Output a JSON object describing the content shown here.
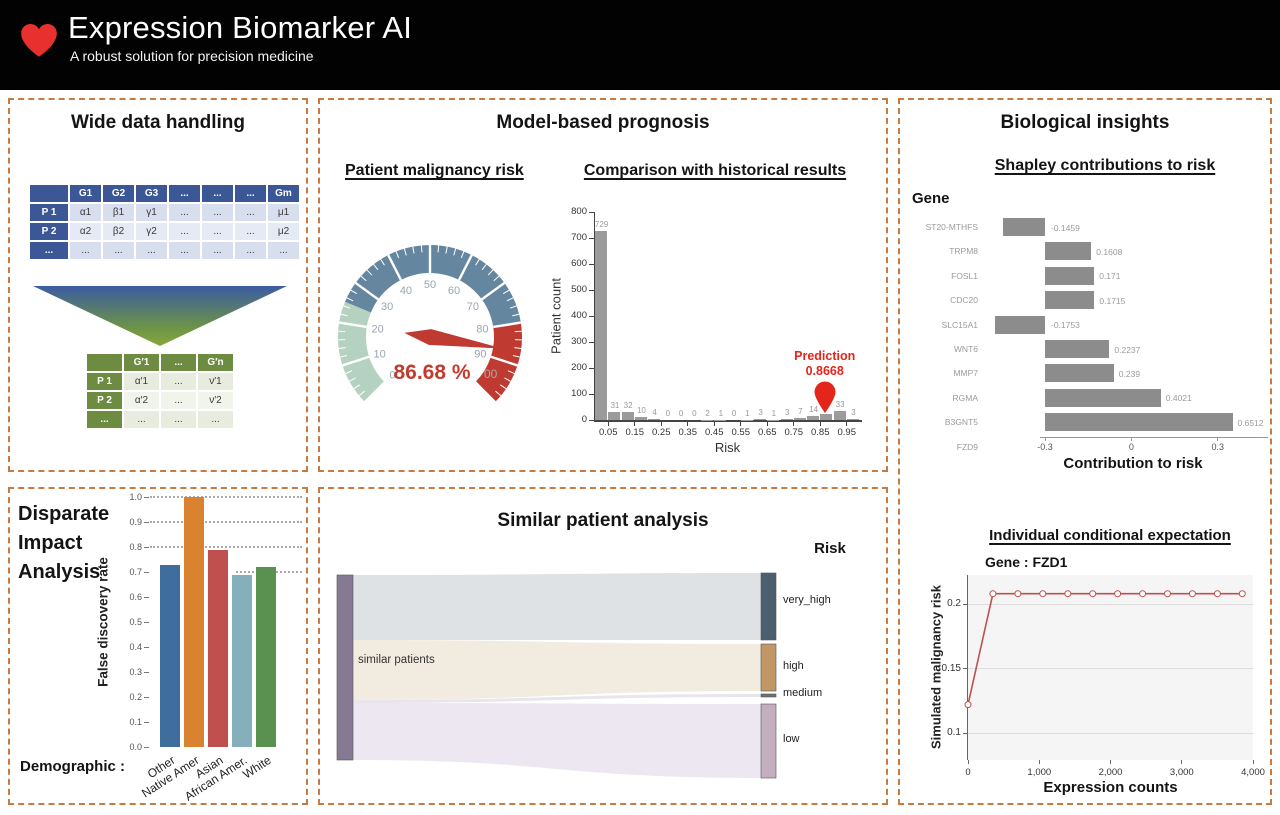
{
  "header": {
    "title": "Expression Biomarker AI",
    "subtitle": "A robust solution for precision medicine",
    "heart_color": "#e8312f"
  },
  "panels": {
    "wide_data": {
      "title": "Wide data handling",
      "input_table": {
        "header_color": "#3b5795",
        "headers": [
          "",
          "G1",
          "G2",
          "G3",
          "...",
          "...",
          "...",
          "Gm"
        ],
        "rows": [
          [
            "P 1",
            "α1",
            "β1",
            "γ1",
            "...",
            "...",
            "...",
            "μ1"
          ],
          [
            "P 2",
            "α2",
            "β2",
            "γ2",
            "...",
            "...",
            "...",
            "μ2"
          ],
          [
            "...",
            "...",
            "...",
            "...",
            "...",
            "...",
            "...",
            "..."
          ]
        ]
      },
      "funnel_colors": [
        "#3c5ca2",
        "#6d9446",
        "#86a83d"
      ],
      "output_table": {
        "header_color": "#6d8b41",
        "headers": [
          "",
          "G′1",
          "...",
          "G′n"
        ],
        "rows": [
          [
            "P 1",
            "α′1",
            "...",
            "ν′1"
          ],
          [
            "P 2",
            "α′2",
            "...",
            "ν′2"
          ],
          [
            "...",
            "...",
            "...",
            "..."
          ]
        ]
      }
    },
    "prognosis": {
      "title": "Model-based prognosis"
    },
    "insights": {
      "title": "Biological insights"
    },
    "similar": {
      "title": "Similar patient analysis"
    }
  },
  "chart_data": [
    {
      "type": "gauge",
      "title": "Patient malignancy risk",
      "min": 0,
      "max": 100,
      "value": 86.68,
      "value_label": "86.68 %",
      "overlapped_max_label": "00",
      "tick_labels": [
        0,
        10,
        20,
        30,
        40,
        50,
        60,
        70,
        80,
        90
      ],
      "bands": [
        {
          "from": 0,
          "to": 25,
          "color": "#b5d2c0"
        },
        {
          "from": 25,
          "to": 80,
          "color": "#64869f"
        },
        {
          "from": 80,
          "to": 100,
          "color": "#bf3a30"
        }
      ],
      "needle_color": "#bf3a30",
      "value_color": "#c23b2e",
      "tick_label_color": "#9aa5b1"
    },
    {
      "type": "bar",
      "title": "Comparison with historical results",
      "xlabel": "Risk",
      "ylabel": "Patient count",
      "ylim": [
        0,
        800
      ],
      "y_ticks": [
        0,
        100,
        200,
        300,
        400,
        500,
        600,
        700,
        800
      ],
      "bin_width": 0.05,
      "x_ticks": [
        0.05,
        0.15,
        0.25,
        0.35,
        0.45,
        0.55,
        0.65,
        0.75,
        0.85,
        0.95
      ],
      "values": [
        729,
        31,
        32,
        10,
        4,
        0,
        0,
        0,
        2,
        1,
        0,
        1,
        3,
        1,
        3,
        7,
        14,
        25,
        33,
        3
      ],
      "bar_labels": [
        "729",
        "31",
        "32",
        "10",
        "4",
        "0",
        "0",
        "0",
        "2",
        "1",
        "0",
        "1",
        "3",
        "1",
        "3",
        "7",
        "14",
        "",
        "33",
        "3"
      ],
      "bar_color": "#9b9b9b",
      "annotation": {
        "label": "Prediction",
        "value_label": "0.8668",
        "x": 0.8668,
        "color": "#e3251b"
      }
    },
    {
      "type": "bar-horizontal",
      "title": "Shapley contributions to risk",
      "col_header": "Gene",
      "xlabel": "Contribution to risk",
      "x_ticks": [
        -0.3,
        0,
        0.3
      ],
      "bar_color": "#8c8c8c",
      "genes": [
        "ST20-MTHFS",
        "TRPM8",
        "FOSL1",
        "CDC20",
        "SLC15A1",
        "WNT6",
        "MMP7",
        "RGMA",
        "B3GNT5",
        "FZD9"
      ],
      "values": [
        -0.1459,
        0.1608,
        0.171,
        0.1715,
        -0.1753,
        0.2237,
        0.239,
        0.4021,
        0.6512,
        null
      ],
      "value_labels": [
        "-0.1459",
        "0.1608",
        "0.171",
        "0.1715",
        "-0.1753",
        "0.2237",
        "0.239",
        "0.4021",
        "0.6512",
        ""
      ]
    },
    {
      "type": "line",
      "title": "Individual conditional expectation",
      "gene_label": "Gene :  FZD1",
      "xlabel": "Expression counts",
      "ylabel": "Simulated malignancy risk",
      "x_ticks": [
        "0",
        "1,000",
        "2,000",
        "3,000",
        "4,000"
      ],
      "x_tick_values": [
        0,
        1000,
        2000,
        3000,
        4000
      ],
      "y_ticks": [
        0.1,
        0.15,
        0.2
      ],
      "x": [
        0,
        350,
        700,
        1050,
        1400,
        1750,
        2100,
        2450,
        2800,
        3150,
        3500,
        3850
      ],
      "y": [
        0.122,
        0.208,
        0.208,
        0.208,
        0.208,
        0.208,
        0.208,
        0.208,
        0.208,
        0.208,
        0.208,
        0.208
      ],
      "line_color": "#c0504d"
    },
    {
      "type": "bar",
      "title_lines": [
        "Disparate",
        "Impact",
        "Analysis"
      ],
      "ylabel": "False discovery rate",
      "x_label_prefix": "Demographic :",
      "categories": [
        "Other",
        "Native Amer",
        "Asian",
        "African Amer.",
        "White"
      ],
      "values": [
        0.73,
        1.0,
        0.79,
        0.69,
        0.72
      ],
      "colors": [
        "#3e6d9e",
        "#d9822f",
        "#c0504d",
        "#85afba",
        "#5b9150"
      ],
      "y_ticks": [
        0.0,
        0.1,
        0.2,
        0.3,
        0.4,
        0.5,
        0.6,
        0.7,
        0.8,
        0.9,
        1.0
      ],
      "gridlines": [
        0.7,
        0.8,
        0.9,
        1.0
      ]
    },
    {
      "type": "sankey",
      "title": "Similar patient analysis",
      "right_header": "Risk",
      "source": {
        "label": "similar patients",
        "color": "#857a92"
      },
      "targets": [
        {
          "label": "very_high",
          "color": "#4c5f6e"
        },
        {
          "label": "high",
          "color": "#c29766"
        },
        {
          "label": "medium",
          "color": "#6f6f6f"
        },
        {
          "label": "low",
          "color": "#c3aebf"
        }
      ],
      "flow_colors": [
        "#dfe2e5",
        "#f2ebdf",
        "#e9e5ec",
        "#ece7f1"
      ]
    }
  ]
}
